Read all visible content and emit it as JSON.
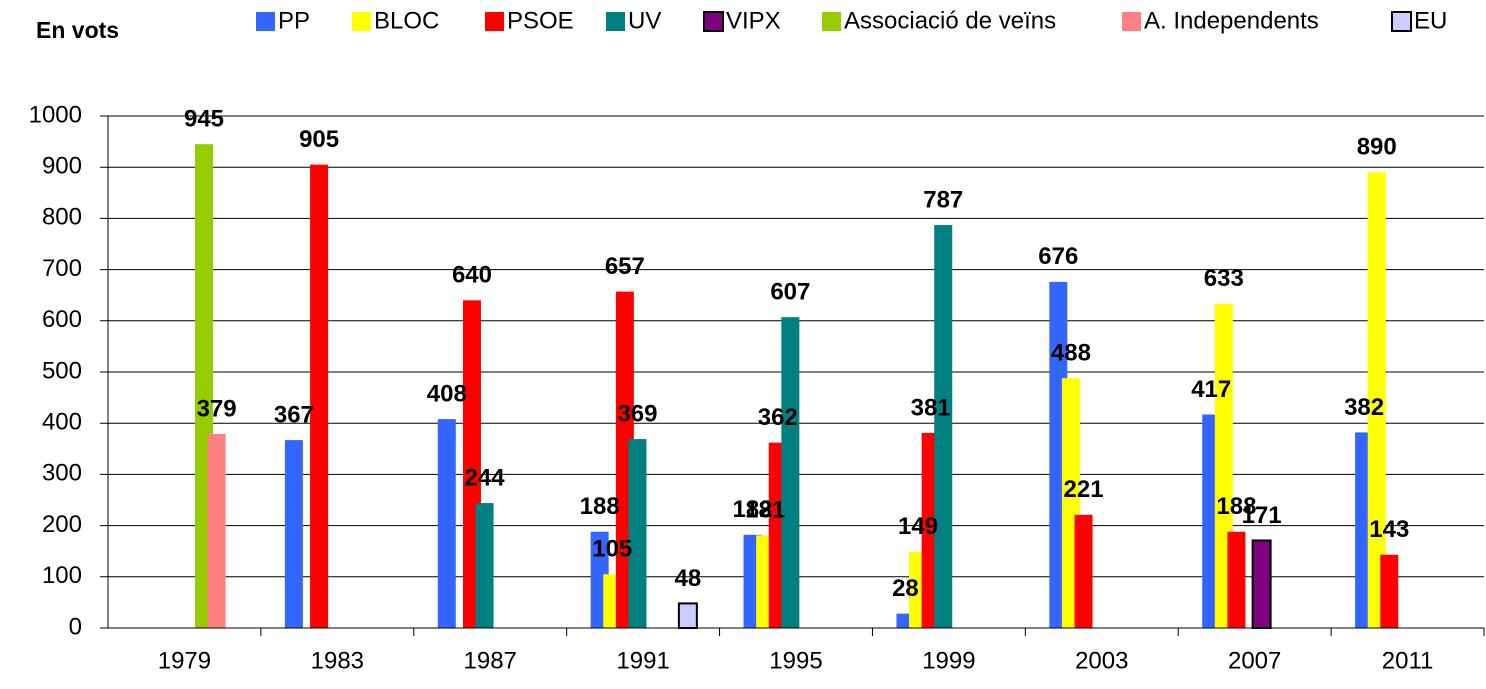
{
  "chart_data": {
    "type": "bar",
    "title": "En vots",
    "categories": [
      "1979",
      "1983",
      "1987",
      "1991",
      "1995",
      "1999",
      "2003",
      "2007",
      "2011"
    ],
    "series": [
      {
        "name": "PP",
        "color": "#3366ff",
        "label_color": "#0000ee",
        "values": [
          null,
          367,
          408,
          188,
          182,
          28,
          676,
          417,
          382
        ]
      },
      {
        "name": "BLOC",
        "color": "#ffff00",
        "label_color": "#000000",
        "values": [
          null,
          null,
          null,
          105,
          181,
          149,
          488,
          633,
          890
        ]
      },
      {
        "name": "PSOE",
        "color": "#ff0000",
        "label_color": "#ff0000",
        "values": [
          null,
          905,
          640,
          657,
          362,
          381,
          221,
          188,
          143
        ]
      },
      {
        "name": "UV",
        "color": "#008080",
        "label_color": "#008080",
        "values": [
          null,
          null,
          244,
          369,
          607,
          787,
          null,
          null,
          null
        ]
      },
      {
        "name": "VIPX",
        "color": "#800080",
        "label_color": "#800080",
        "values": [
          null,
          null,
          null,
          null,
          null,
          null,
          null,
          171,
          null
        ]
      },
      {
        "name": "Associació de veïns",
        "color": "#99cc00",
        "label_color": "#99cc00",
        "values": [
          945,
          null,
          null,
          null,
          null,
          null,
          null,
          null,
          null
        ]
      },
      {
        "name": "A. Independents",
        "color": "#ff8080",
        "label_color": "#000000",
        "values": [
          379,
          null,
          null,
          null,
          null,
          null,
          null,
          null,
          null
        ]
      },
      {
        "name": "EU",
        "color": "#ccccff",
        "label_color": "#000000",
        "values": [
          null,
          null,
          null,
          48,
          null,
          null,
          null,
          null,
          null
        ]
      }
    ],
    "ylim": [
      0,
      1000
    ],
    "yticks": [
      0,
      100,
      200,
      300,
      400,
      500,
      600,
      700,
      800,
      900,
      1000
    ],
    "grid": true,
    "legend": "top"
  }
}
